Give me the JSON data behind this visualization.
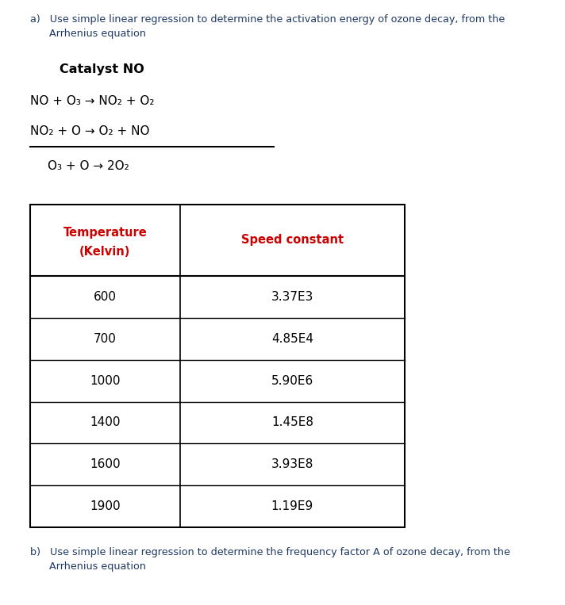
{
  "title_a_line1": "a)   Use simple linear regression to determine the activation energy of ozone decay, from the",
  "title_a_line2": "      Arrhenius equation",
  "catalyst_label": "Catalyst NO",
  "reaction1": "NO + O₃ → NO₂ + O₂",
  "reaction2": "NO₂ + O → O₂ + NO",
  "reaction3": "O₃ + O → 2O₂",
  "col1_header_line1": "Temperature",
  "col1_header_line2": "(Kelvin)",
  "col2_header": "Speed constant",
  "temperatures": [
    "600",
    "700",
    "1000",
    "1400",
    "1600",
    "1900"
  ],
  "speed_constants": [
    "3.37E3",
    "4.85E4",
    "5.90E6",
    "1.45E8",
    "3.93E8",
    "1.19E9"
  ],
  "title_b_line1": "b)   Use simple linear regression to determine the frequency factor A of ozone decay, from the",
  "title_b_line2": "      Arrhenius equation",
  "text_color": "#1F3864",
  "header_color": "#CC0000",
  "body_color": "#000000",
  "bg_color": "#FFFFFF",
  "underline_color": "#000000",
  "fig_width": 7.12,
  "fig_height": 7.63,
  "dpi": 100
}
